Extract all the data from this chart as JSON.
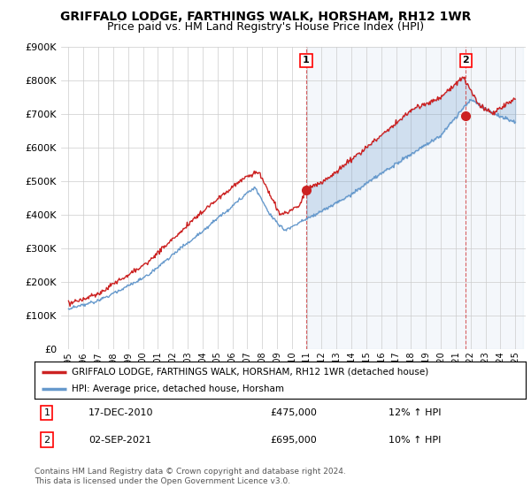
{
  "title": "GRIFFALO LODGE, FARTHINGS WALK, HORSHAM, RH12 1WR",
  "subtitle": "Price paid vs. HM Land Registry's House Price Index (HPI)",
  "ylim": [
    0,
    900000
  ],
  "yticks": [
    0,
    100000,
    200000,
    300000,
    400000,
    500000,
    600000,
    700000,
    800000,
    900000
  ],
  "ytick_labels": [
    "£0",
    "£100K",
    "£200K",
    "£300K",
    "£400K",
    "£500K",
    "£600K",
    "£700K",
    "£800K",
    "£900K"
  ],
  "hpi_color": "#6699cc",
  "price_color": "#cc2222",
  "fill_color": "#ddeeff",
  "marker1_date": 2010.96,
  "marker1_price": 475000,
  "marker1_label": "1",
  "marker2_date": 2021.67,
  "marker2_price": 695000,
  "marker2_label": "2",
  "legend_line1": "GRIFFALO LODGE, FARTHINGS WALK, HORSHAM, RH12 1WR (detached house)",
  "legend_line2": "HPI: Average price, detached house, Horsham",
  "table_row1": [
    "1",
    "17-DEC-2010",
    "£475,000",
    "12% ↑ HPI"
  ],
  "table_row2": [
    "2",
    "02-SEP-2021",
    "£695,000",
    "10% ↑ HPI"
  ],
  "footnote": "Contains HM Land Registry data © Crown copyright and database right 2024.\nThis data is licensed under the Open Government Licence v3.0.",
  "background_color": "#ffffff",
  "grid_color": "#cccccc",
  "title_fontsize": 10,
  "subtitle_fontsize": 9
}
